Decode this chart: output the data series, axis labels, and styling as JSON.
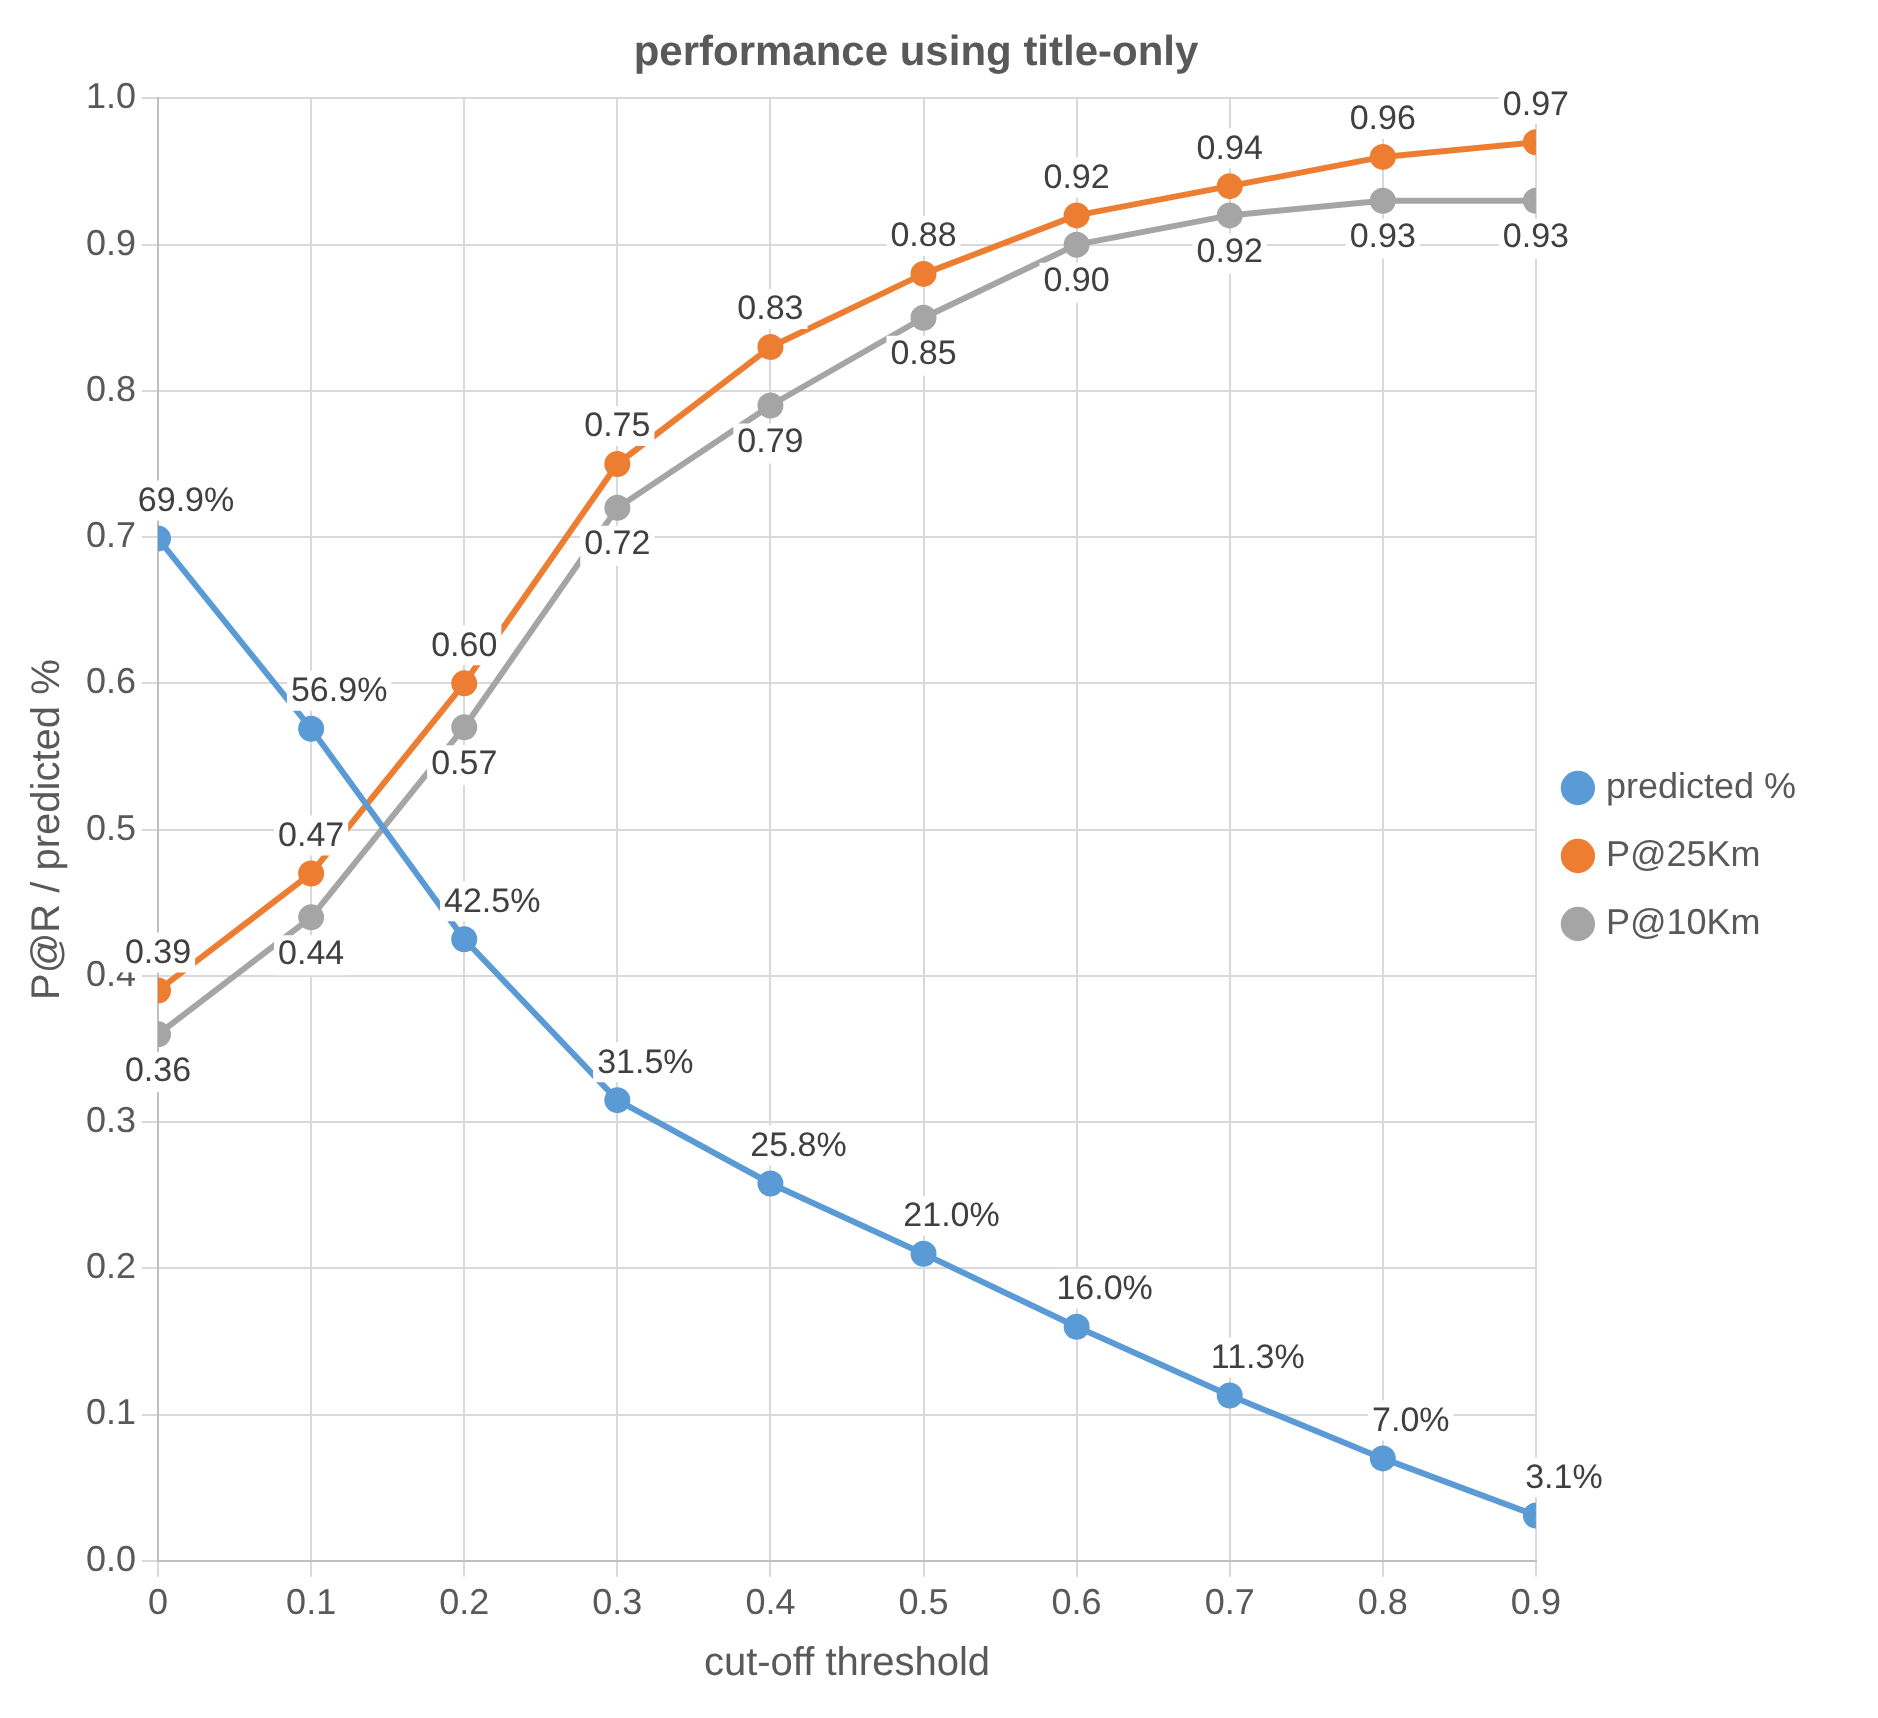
{
  "chart_data": {
    "type": "line",
    "title": "performance using title-only",
    "xlabel": "cut-off threshold",
    "ylabel": "P@R / predicted %",
    "x": [
      0,
      0.1,
      0.2,
      0.3,
      0.4,
      0.5,
      0.6,
      0.7,
      0.8,
      0.9
    ],
    "series": [
      {
        "name": "predicted %",
        "color": "#5b9bd5",
        "values": [
          0.699,
          0.569,
          0.425,
          0.315,
          0.258,
          0.21,
          0.16,
          0.113,
          0.07,
          0.031
        ],
        "value_labels": [
          "69.9%",
          "56.9%",
          "42.5%",
          "31.5%",
          "25.8%",
          "21.0%",
          "16.0%",
          "11.3%",
          "7.0%",
          "3.1%"
        ]
      },
      {
        "name": "P@25Km",
        "color": "#ed7d31",
        "values": [
          0.39,
          0.47,
          0.6,
          0.75,
          0.83,
          0.88,
          0.92,
          0.94,
          0.96,
          0.97
        ],
        "value_labels": [
          "0.39",
          "0.47",
          "0.60",
          "0.75",
          "0.83",
          "0.88",
          "0.92",
          "0.94",
          "0.96",
          "0.97"
        ]
      },
      {
        "name": "P@10Km",
        "color": "#a5a5a5",
        "values": [
          0.36,
          0.44,
          0.57,
          0.72,
          0.79,
          0.85,
          0.9,
          0.92,
          0.93,
          0.93
        ],
        "value_labels": [
          "0.36",
          "0.44",
          "0.57",
          "0.72",
          "0.79",
          "0.85",
          "0.90",
          "0.92",
          "0.93",
          "0.93"
        ]
      }
    ],
    "xlim": [
      0,
      0.9
    ],
    "xticks": [
      0,
      0.1,
      0.2,
      0.3,
      0.4,
      0.5,
      0.6,
      0.7,
      0.8,
      0.9
    ],
    "ylim": [
      0,
      1
    ],
    "yticks": [
      {
        "value": 0,
        "label": "0.0"
      },
      0.1,
      0.2,
      0.3,
      0.4,
      0.5,
      0.6,
      0.7,
      0.8,
      0.9,
      {
        "value": 1,
        "label": "1.0"
      }
    ],
    "grid": true,
    "legend": "right",
    "marker": "circle",
    "line_style": "solid"
  }
}
